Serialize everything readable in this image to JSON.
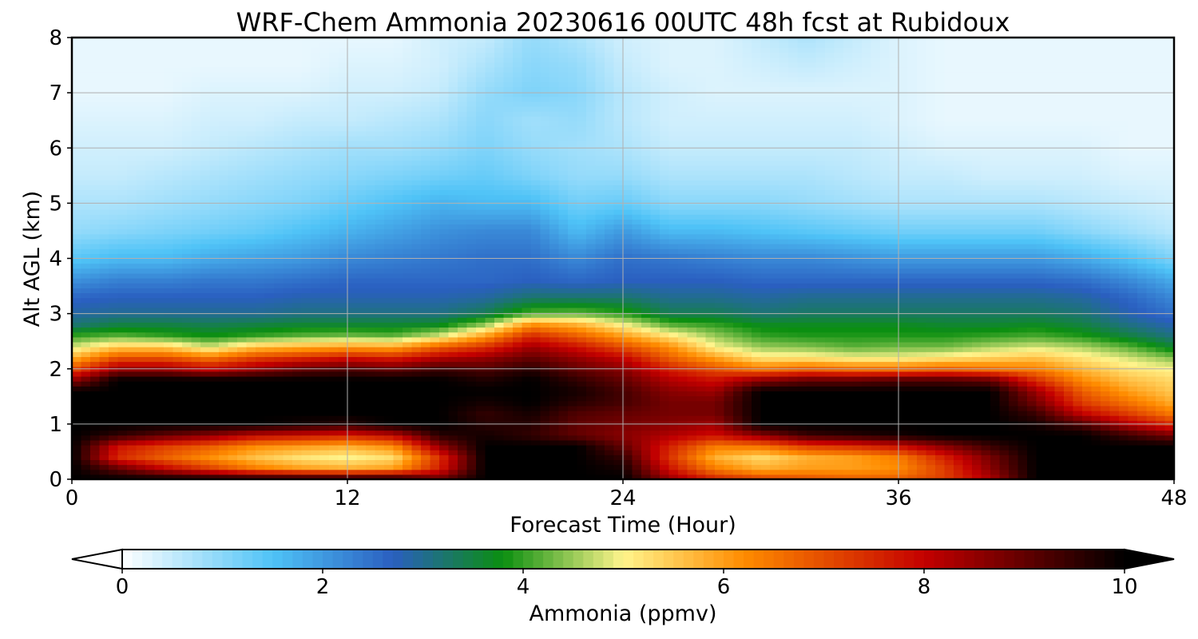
{
  "chart_data": {
    "type": "heatmap",
    "title": "WRF-Chem Ammonia  20230616 00UTC 48h fcst at Rubidoux",
    "xlabel": "Forecast Time (Hour)",
    "ylabel": "Alt AGL (km)",
    "xlim": [
      0,
      48
    ],
    "ylim": [
      0,
      8
    ],
    "xticks": [
      "0",
      "12",
      "24",
      "36",
      "48"
    ],
    "yticks": [
      "0",
      "1",
      "2",
      "3",
      "4",
      "5",
      "6",
      "7",
      "8"
    ],
    "grid": true,
    "colorbar": {
      "label": "Ammonia  (ppmv)",
      "min": 0,
      "max": 10,
      "extend": "both",
      "ticks": [
        "0",
        "2",
        "4",
        "6",
        "8",
        "10"
      ],
      "colors": [
        "#ffffff",
        "#4fc3f7",
        "#2a5fc0",
        "#0b8f10",
        "#fff48c",
        "#ff8c00",
        "#c40000",
        "#000000"
      ],
      "stops": [
        0,
        0.15,
        0.27,
        0.38,
        0.5,
        0.62,
        0.8,
        1.0
      ]
    },
    "grid_x": [
      0,
      2,
      4,
      6,
      8,
      10,
      12,
      14,
      16,
      18,
      20,
      22,
      24,
      26,
      28,
      30,
      32,
      34,
      36,
      38,
      40,
      42,
      44,
      46,
      48
    ],
    "grid_y": [
      0,
      0.2,
      0.4,
      0.6,
      0.8,
      1.0,
      1.2,
      1.4,
      1.6,
      1.8,
      2.0,
      2.2,
      2.4,
      2.6,
      2.8,
      3.0,
      3.3,
      3.6,
      4.0,
      4.5,
      5.0,
      5.5,
      6.0,
      6.5,
      7.0,
      7.5,
      8.0
    ],
    "columns": [
      [
        10,
        10,
        10,
        10,
        10,
        10,
        10,
        10,
        10,
        8.5,
        7.0,
        5.8,
        4.8,
        4.0,
        3.2,
        2.9,
        2.6,
        2.1,
        1.4,
        0.9,
        0.7,
        0.5,
        0.4,
        0.3,
        0.2,
        0.2,
        0.2
      ],
      [
        10,
        9.0,
        7.5,
        7.8,
        9.5,
        10,
        10,
        10,
        10,
        10,
        8.5,
        7.0,
        5.5,
        4.2,
        3.5,
        3.0,
        2.7,
        2.3,
        1.6,
        1.0,
        0.7,
        0.5,
        0.4,
        0.3,
        0.2,
        0.2,
        0.2
      ],
      [
        10,
        8.0,
        6.8,
        7.2,
        9.0,
        10,
        10,
        10,
        10,
        10,
        8.5,
        7.0,
        5.5,
        4.0,
        3.5,
        3.0,
        2.7,
        2.3,
        1.6,
        1.1,
        0.8,
        0.6,
        0.4,
        0.3,
        0.2,
        0.2,
        0.2
      ],
      [
        10,
        7.2,
        6.2,
        6.8,
        8.6,
        10,
        10,
        10,
        10,
        10,
        8.0,
        6.5,
        4.8,
        3.8,
        3.4,
        3.0,
        2.7,
        2.4,
        1.8,
        1.2,
        0.9,
        0.7,
        0.5,
        0.4,
        0.3,
        0.2,
        0.2
      ],
      [
        10,
        6.4,
        5.6,
        6.2,
        8.0,
        10,
        10,
        10,
        10,
        10,
        8.5,
        7.2,
        5.6,
        4.0,
        3.5,
        3.0,
        2.7,
        2.4,
        1.9,
        1.3,
        1.0,
        0.8,
        0.6,
        0.4,
        0.3,
        0.2,
        0.2
      ],
      [
        10,
        6.0,
        5.2,
        6.0,
        7.8,
        9.8,
        10,
        10,
        10,
        10,
        9.0,
        7.5,
        5.8,
        4.2,
        3.6,
        3.1,
        2.8,
        2.5,
        2.0,
        1.5,
        1.1,
        0.9,
        0.7,
        0.5,
        0.3,
        0.2,
        0.2
      ],
      [
        10,
        5.8,
        5.0,
        5.8,
        7.6,
        9.6,
        10,
        10,
        10,
        10,
        9.2,
        7.8,
        6.0,
        4.3,
        3.6,
        3.1,
        2.8,
        2.6,
        2.2,
        1.7,
        1.3,
        1.0,
        0.8,
        0.5,
        0.4,
        0.3,
        0.2
      ],
      [
        10,
        6.0,
        5.3,
        6.2,
        8.0,
        10,
        10,
        10,
        10,
        10,
        9.0,
        7.6,
        5.9,
        4.2,
        3.6,
        3.1,
        2.8,
        2.6,
        2.3,
        1.9,
        1.5,
        1.1,
        0.8,
        0.6,
        0.4,
        0.3,
        0.2
      ],
      [
        9.0,
        7.6,
        7.4,
        8.5,
        9.6,
        10,
        10,
        10,
        10,
        10,
        9.4,
        8.2,
        6.8,
        4.8,
        3.7,
        3.1,
        2.8,
        2.6,
        2.4,
        2.1,
        1.7,
        1.2,
        0.9,
        0.7,
        0.5,
        0.4,
        0.4
      ],
      [
        10,
        10,
        10,
        10,
        9.8,
        9.6,
        9.5,
        9.8,
        10,
        9.7,
        9.2,
        8.5,
        7.4,
        6.0,
        4.5,
        3.4,
        2.9,
        2.6,
        2.5,
        2.2,
        1.6,
        1.3,
        1.1,
        1.0,
        0.9,
        0.7,
        0.5
      ],
      [
        10,
        10,
        10,
        10,
        9.5,
        9.6,
        9.8,
        10,
        10,
        10,
        9.6,
        9.0,
        8.4,
        7.5,
        6.2,
        4.2,
        3.2,
        2.7,
        2.5,
        2.2,
        1.6,
        1.1,
        0.9,
        0.8,
        1.1,
        1.0,
        0.9
      ],
      [
        10,
        10,
        10,
        10,
        9.0,
        9.0,
        9.2,
        9.6,
        9.8,
        9.5,
        9.0,
        8.5,
        7.8,
        6.8,
        5.8,
        4.3,
        3.2,
        2.6,
        2.2,
        1.6,
        1.2,
        0.9,
        0.8,
        0.9,
        1.0,
        0.9,
        0.7
      ],
      [
        10,
        9.8,
        9.5,
        9.0,
        8.6,
        8.8,
        9.0,
        9.3,
        9.3,
        9.0,
        8.6,
        8.0,
        7.0,
        6.0,
        5.0,
        4.0,
        3.2,
        2.7,
        2.5,
        2.0,
        1.3,
        0.9,
        0.7,
        0.6,
        0.6,
        0.5,
        0.4
      ],
      [
        8.5,
        7.8,
        7.4,
        7.6,
        8.2,
        8.6,
        8.8,
        8.8,
        8.6,
        8.2,
        7.6,
        6.8,
        6.2,
        5.2,
        4.2,
        3.4,
        3.0,
        2.7,
        2.4,
        1.6,
        1.0,
        0.7,
        0.5,
        0.4,
        0.4,
        0.3,
        0.3
      ],
      [
        7.6,
        6.4,
        5.8,
        6.4,
        7.8,
        8.4,
        8.8,
        8.8,
        8.4,
        7.8,
        7.0,
        6.0,
        5.0,
        4.5,
        4.0,
        3.4,
        3.0,
        2.7,
        2.3,
        1.6,
        1.0,
        0.7,
        0.5,
        0.4,
        0.3,
        0.3,
        0.3
      ],
      [
        7.2,
        5.8,
        5.3,
        6.5,
        8.6,
        10,
        10,
        10,
        10,
        8.6,
        6.5,
        5.2,
        4.5,
        4.0,
        3.7,
        3.2,
        2.9,
        2.6,
        2.2,
        1.5,
        1.0,
        0.7,
        0.5,
        0.4,
        0.3,
        0.4,
        0.5
      ],
      [
        7.0,
        6.0,
        5.8,
        7.2,
        9.4,
        10,
        10,
        10,
        10,
        9.0,
        6.8,
        5.2,
        4.4,
        3.9,
        3.7,
        3.3,
        3.0,
        2.6,
        2.2,
        1.4,
        0.9,
        0.7,
        0.5,
        0.4,
        0.3,
        0.5,
        0.7
      ],
      [
        6.8,
        6.0,
        6.0,
        7.4,
        9.6,
        10,
        10,
        10,
        10,
        9.0,
        6.6,
        5.0,
        4.2,
        3.9,
        3.7,
        3.3,
        3.0,
        2.6,
        2.1,
        1.3,
        0.8,
        0.6,
        0.5,
        0.4,
        0.3,
        0.4,
        0.5
      ],
      [
        6.8,
        6.2,
        6.4,
        7.8,
        9.8,
        10,
        10,
        10,
        10,
        9.2,
        6.6,
        5.0,
        4.3,
        3.9,
        3.7,
        3.3,
        3.0,
        2.6,
        2.0,
        1.2,
        0.7,
        0.5,
        0.4,
        0.3,
        0.3,
        0.3,
        0.3
      ],
      [
        7.2,
        7.2,
        7.6,
        8.6,
        10,
        10,
        10,
        10,
        10,
        9.2,
        6.8,
        5.2,
        4.3,
        3.9,
        3.6,
        3.3,
        3.0,
        2.6,
        2.0,
        1.2,
        0.7,
        0.5,
        0.3,
        0.2,
        0.2,
        0.2,
        0.2
      ],
      [
        8.2,
        8.6,
        8.8,
        9.4,
        10,
        10,
        10,
        10,
        10,
        9.0,
        6.6,
        5.4,
        4.6,
        4.0,
        3.6,
        3.3,
        3.0,
        2.6,
        2.0,
        1.2,
        0.7,
        0.4,
        0.3,
        0.2,
        0.2,
        0.2,
        0.2
      ],
      [
        10,
        10,
        10,
        10,
        10,
        9.8,
        9.4,
        8.8,
        8.4,
        7.4,
        6.4,
        5.6,
        4.8,
        4.1,
        3.7,
        3.3,
        3.0,
        2.6,
        2.0,
        1.2,
        0.7,
        0.4,
        0.3,
        0.2,
        0.2,
        0.2,
        0.2
      ],
      [
        10,
        10,
        10,
        10,
        10,
        9.2,
        8.0,
        7.2,
        6.8,
        6.2,
        5.7,
        5.2,
        4.6,
        3.9,
        3.5,
        3.2,
        2.9,
        2.5,
        1.8,
        1.0,
        0.6,
        0.4,
        0.3,
        0.2,
        0.2,
        0.2,
        0.2
      ],
      [
        10,
        10,
        10,
        10,
        9.4,
        8.2,
        7.2,
        6.5,
        6.0,
        5.6,
        5.2,
        4.8,
        4.2,
        3.5,
        3.1,
        2.8,
        2.6,
        2.2,
        1.5,
        0.8,
        0.5,
        0.3,
        0.2,
        0.2,
        0.2,
        0.2,
        0.2
      ],
      [
        10,
        10,
        10,
        10,
        8.8,
        7.4,
        6.4,
        5.8,
        5.5,
        5.3,
        5.0,
        4.4,
        3.6,
        3.1,
        2.8,
        2.5,
        2.2,
        1.8,
        1.1,
        0.6,
        0.4,
        0.3,
        0.2,
        0.2,
        0.2,
        0.2,
        0.2
      ]
    ]
  }
}
